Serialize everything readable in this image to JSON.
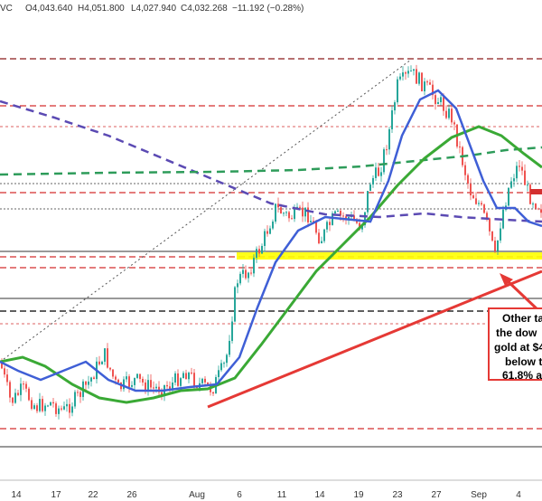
{
  "header": {
    "symbol_tail": "VC",
    "open": "O4,043.640",
    "high": "H4,051.800",
    "low": "L4,027.940",
    "close": "C4,032.268",
    "change": "−11.192 (−0.28%)"
  },
  "colors": {
    "up": "#26a69a",
    "down": "#ef5350",
    "ma_fast": "#3f5fd6",
    "ma_mid": "#3aa935",
    "ma_slow_dash": "#2e9c5a",
    "ma_purple_dash": "#5b4ab3",
    "trendline": "#e53935",
    "support_zone": "#ffff00",
    "level_red": "#d32f2f",
    "level_black": "#000000"
  },
  "chart_data": {
    "type": "candlestick",
    "x_tick_labels": [
      "14",
      "17",
      "22",
      "26",
      "Aug",
      "6",
      "11",
      "14",
      "19",
      "23",
      "27",
      "Sep",
      "4"
    ],
    "grid": false,
    "legend": "none",
    "annotation_lines": [
      "Other ta",
      "the dow",
      "gold at $4",
      "below t",
      "61.8% a"
    ],
    "ohlc_readout": {
      "open": 4043.64,
      "high": 4051.8,
      "low": 4027.94,
      "close": 4032.268,
      "change": -11.192,
      "change_pct": -0.28
    }
  }
}
